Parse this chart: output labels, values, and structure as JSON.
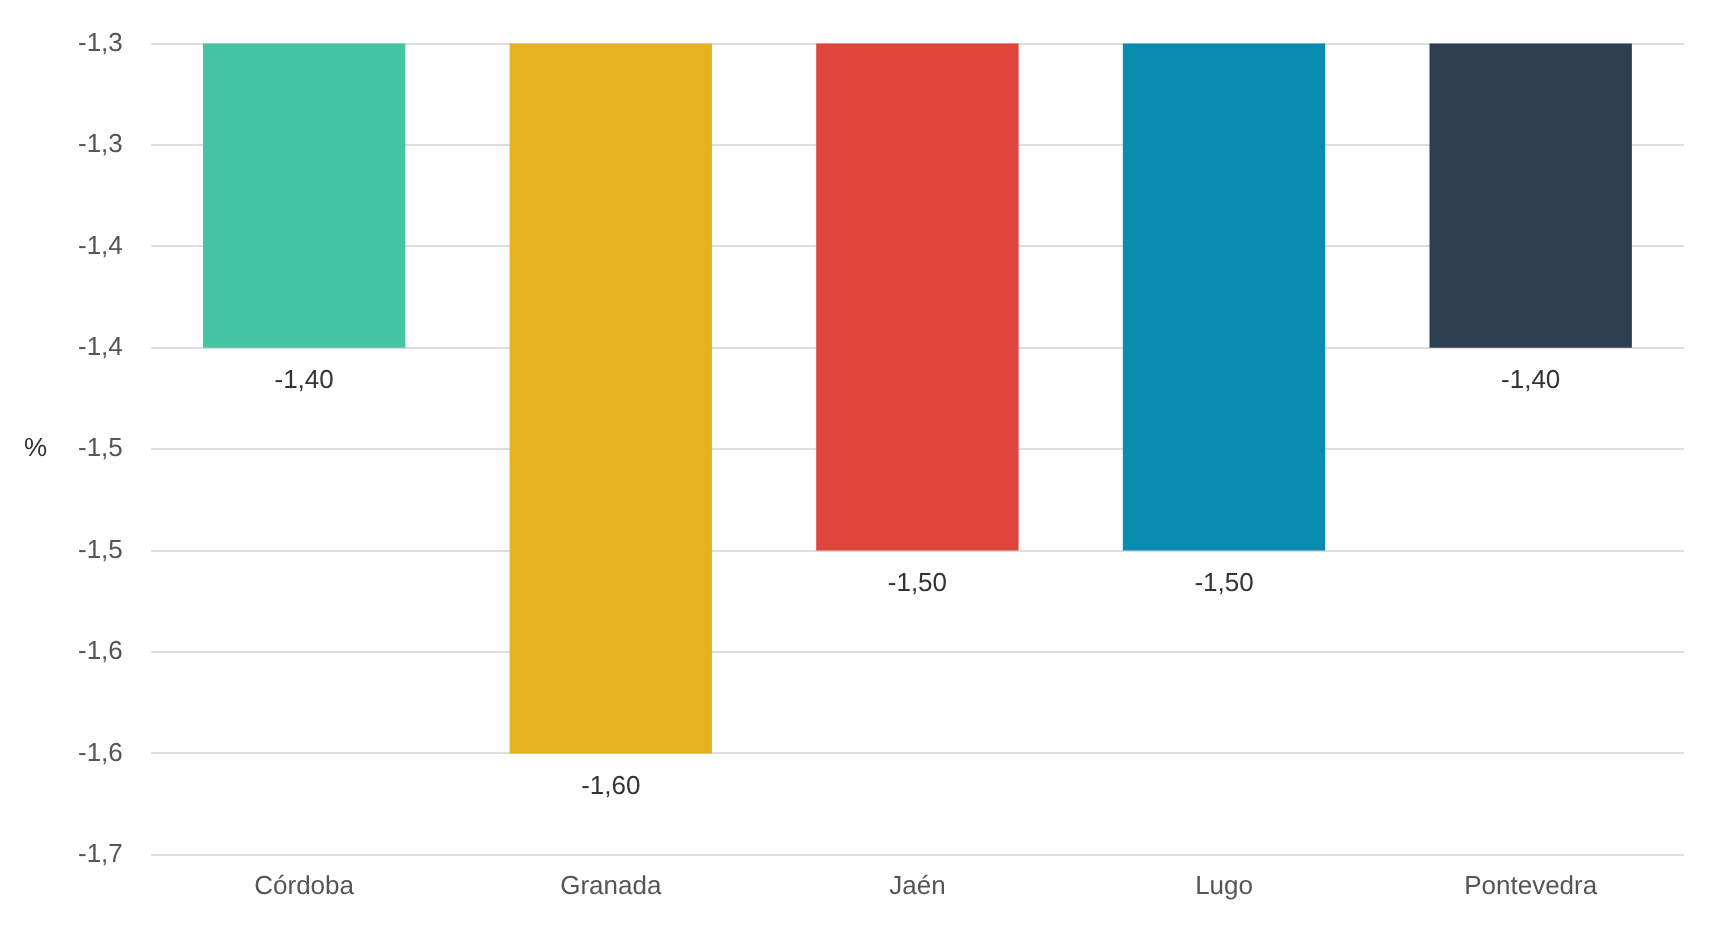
{
  "chart_data": {
    "type": "bar",
    "ylabel": "%",
    "categories": [
      "Córdoba",
      "Granada",
      "Jaén",
      "Lugo",
      "Pontevedra"
    ],
    "values": [
      -1.4,
      -1.6,
      -1.5,
      -1.5,
      -1.4
    ],
    "colors": [
      "#45c4a3",
      "#e6b221",
      "#e0453c",
      "#0a8cb0",
      "#2c3e50"
    ],
    "value_labels": [
      "-1,40",
      "-1,60",
      "-1,50",
      "-1,50",
      "-1,40"
    ],
    "ylim": [
      -1.65,
      -1.25
    ],
    "yticks": [
      {
        "value": -1.25,
        "label": "-1,3"
      },
      {
        "value": -1.3,
        "label": "-1,3"
      },
      {
        "value": -1.35,
        "label": "-1,4"
      },
      {
        "value": -1.4,
        "label": "-1,4"
      },
      {
        "value": -1.45,
        "label": "-1,5"
      },
      {
        "value": -1.5,
        "label": "-1,5"
      },
      {
        "value": -1.55,
        "label": "-1,6"
      },
      {
        "value": -1.6,
        "label": "-1,6"
      },
      {
        "value": -1.65,
        "label": "-1,7"
      }
    ],
    "grid": "y",
    "legend": false
  }
}
